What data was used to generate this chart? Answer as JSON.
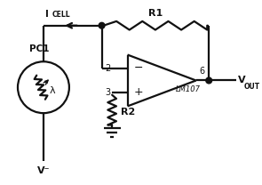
{
  "bg_color": "#ffffff",
  "fg_color": "#111111",
  "icell_label": "I",
  "icell_sub": "CELL",
  "pc1_label": "PC1",
  "lambda_label": "λ",
  "vminus_label": "V⁻",
  "r1_label": "R1",
  "r2_label": "R2",
  "lm107_label": "LM107",
  "vout_label": "V",
  "vout_sub": "OUT",
  "pin2_label": "2",
  "pin3_label": "3",
  "pin6_label": "6"
}
